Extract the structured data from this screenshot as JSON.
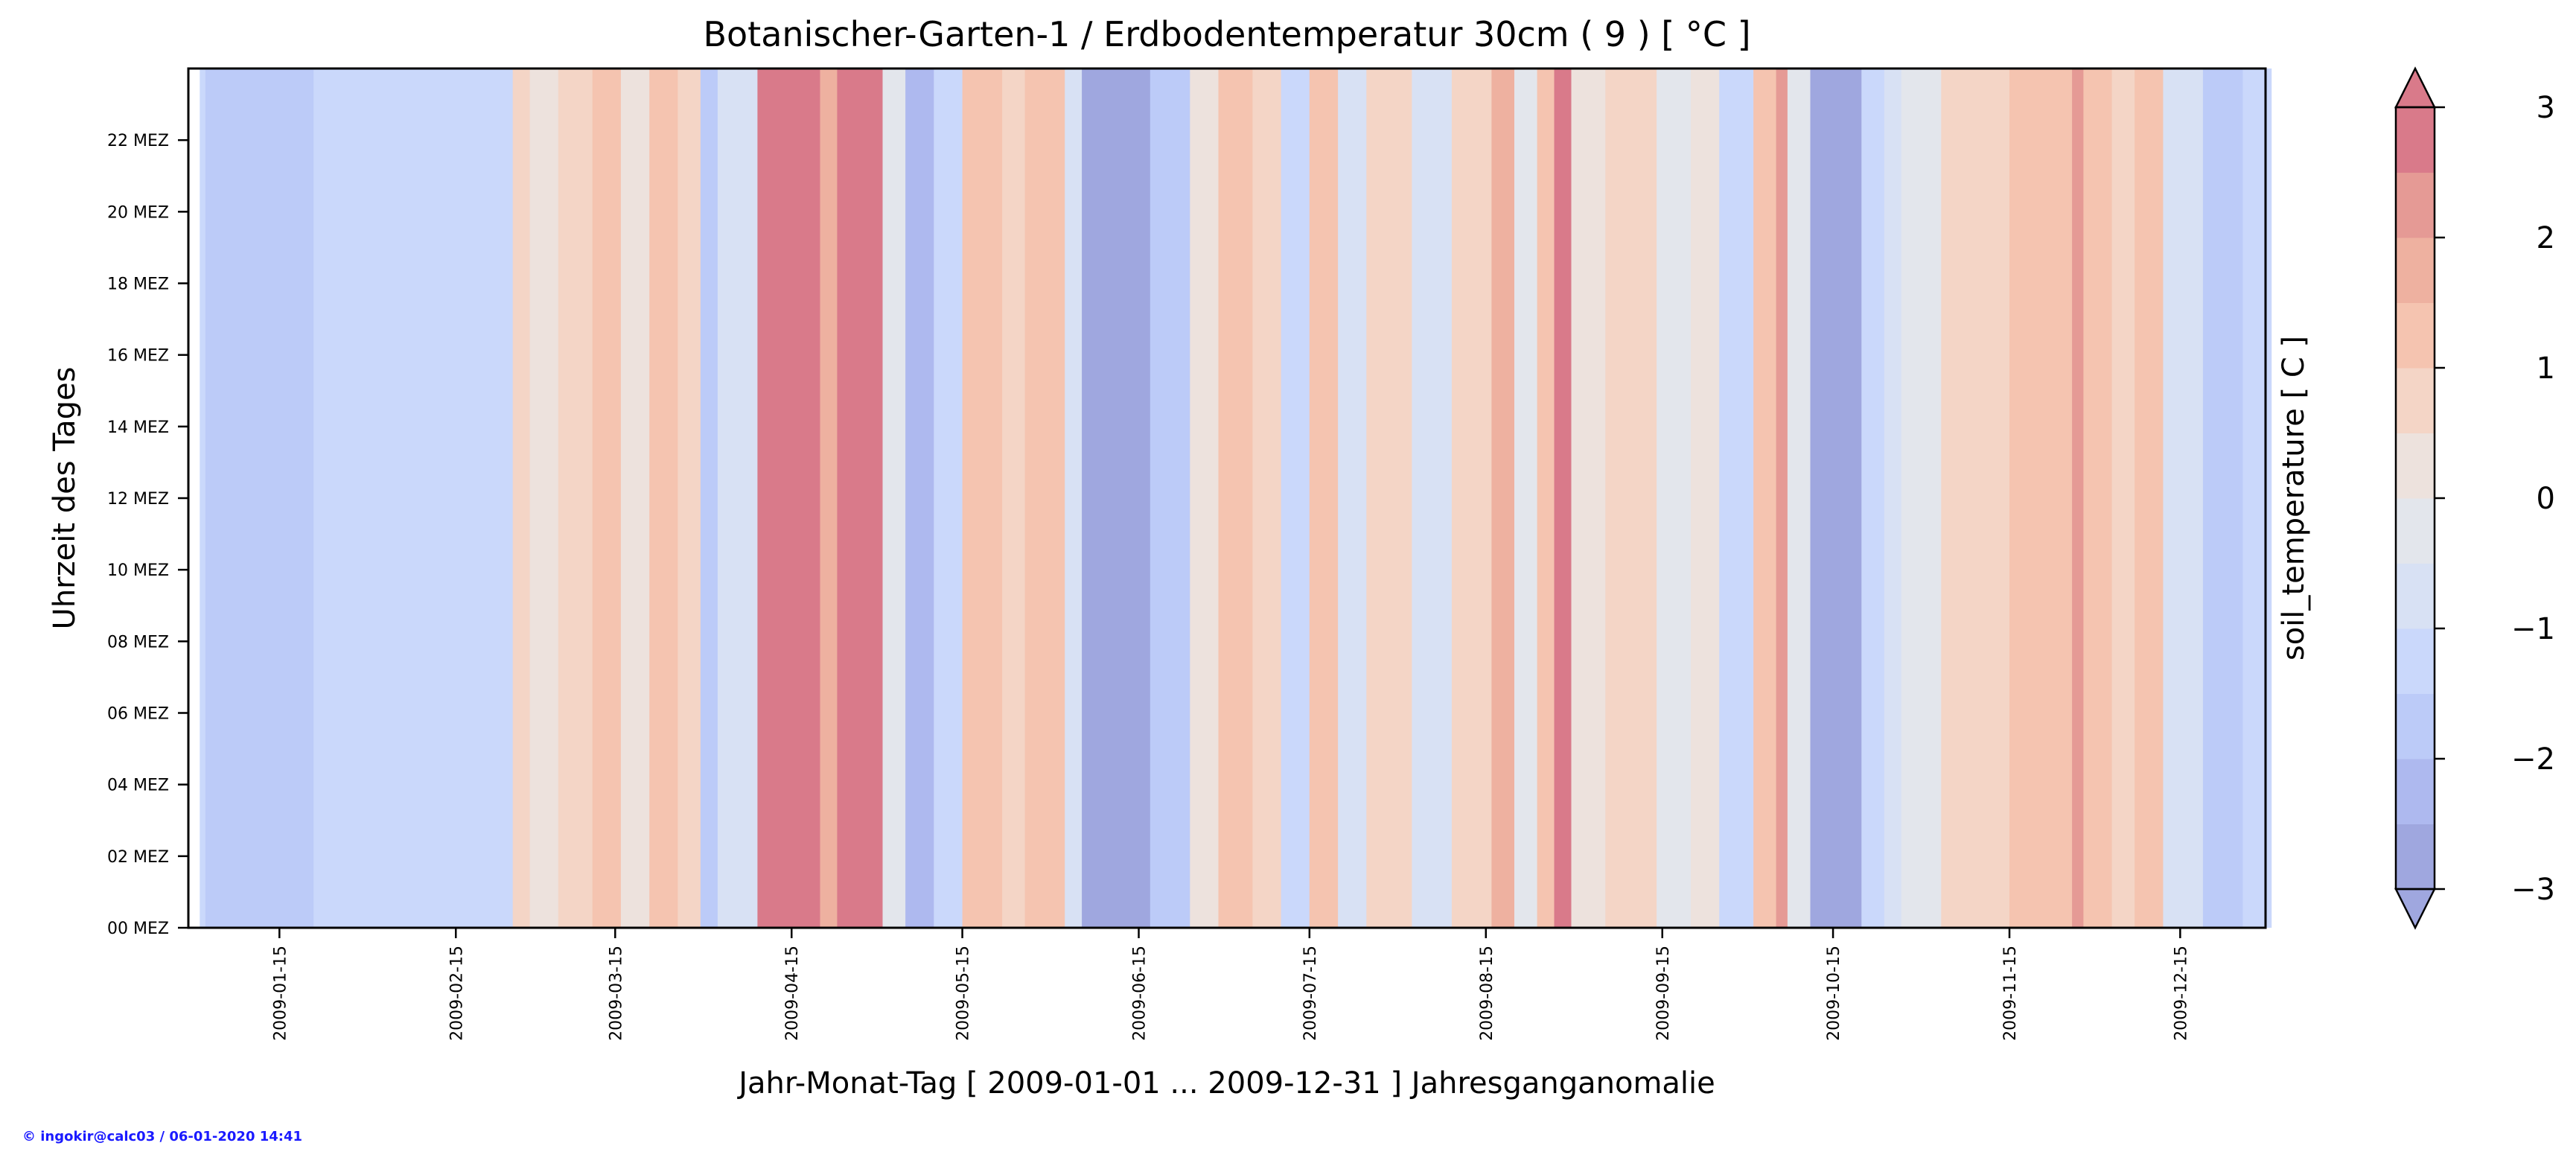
{
  "chart_data": {
    "type": "heatmap",
    "title": "Botanischer-Garten-1 / Erdbodentemperatur 30cm ( 9 ) [ °C ]",
    "xlabel": "Jahr-Monat-Tag [ 2009-01-01 ... 2009-12-31 ] Jahresganganomalie",
    "ylabel": "Uhrzeit des Tages",
    "colorbar_label": "soil_temperature [ C ]",
    "credit": "© ingokir@calc03 / 06-01-2020 14:41",
    "x_range": [
      "2009-01-01",
      "2009-12-31"
    ],
    "y_range": [
      0,
      24
    ],
    "x_ticks": [
      "2009-01-15",
      "2009-02-15",
      "2009-03-15",
      "2009-04-15",
      "2009-05-15",
      "2009-06-15",
      "2009-07-15",
      "2009-08-15",
      "2009-09-15",
      "2009-10-15",
      "2009-11-15",
      "2009-12-15"
    ],
    "y_ticks": [
      {
        "hour": 0,
        "label": "00 MEZ"
      },
      {
        "hour": 2,
        "label": "02 MEZ"
      },
      {
        "hour": 4,
        "label": "04 MEZ"
      },
      {
        "hour": 6,
        "label": "06 MEZ"
      },
      {
        "hour": 8,
        "label": "08 MEZ"
      },
      {
        "hour": 10,
        "label": "10 MEZ"
      },
      {
        "hour": 12,
        "label": "12 MEZ"
      },
      {
        "hour": 14,
        "label": "14 MEZ"
      },
      {
        "hour": 16,
        "label": "16 MEZ"
      },
      {
        "hour": 18,
        "label": "18 MEZ"
      },
      {
        "hour": 20,
        "label": "20 MEZ"
      },
      {
        "hour": 22,
        "label": "22 MEZ"
      }
    ],
    "colorbar": {
      "range": [
        -3,
        3
      ],
      "extend": "both",
      "ticks": [
        {
          "value": -3,
          "label": "−3"
        },
        {
          "value": -2,
          "label": "−2"
        },
        {
          "value": -1,
          "label": "−1"
        },
        {
          "value": 0,
          "label": "0"
        },
        {
          "value": 1,
          "label": "1"
        },
        {
          "value": 2,
          "label": "2"
        },
        {
          "value": 3,
          "label": "3"
        }
      ],
      "levels": [
        {
          "from": -3.0,
          "to": -2.5,
          "color": "#9fa7df"
        },
        {
          "from": -2.5,
          "to": -2.0,
          "color": "#aeb9ef"
        },
        {
          "from": -2.0,
          "to": -1.5,
          "color": "#bccbf8"
        },
        {
          "from": -1.5,
          "to": -1.0,
          "color": "#cad8fb"
        },
        {
          "from": -1.0,
          "to": -0.5,
          "color": "#d8e1f4"
        },
        {
          "from": -0.5,
          "to": 0.0,
          "color": "#e3e6ec"
        },
        {
          "from": 0.0,
          "to": 0.5,
          "color": "#ede2dd"
        },
        {
          "from": 0.5,
          "to": 1.0,
          "color": "#f4d5c6"
        },
        {
          "from": 1.0,
          "to": 1.5,
          "color": "#f5c4b0"
        },
        {
          "from": 1.5,
          "to": 2.0,
          "color": "#eeb1a0"
        },
        {
          "from": 2.0,
          "to": 2.5,
          "color": "#e59a95"
        },
        {
          "from": 2.5,
          "to": 3.0,
          "color": "#d97a8a"
        }
      ]
    },
    "anomaly_bands": [
      {
        "start": "2009-01-01",
        "end": "2009-01-02",
        "value": -1.4
      },
      {
        "start": "2009-01-02",
        "end": "2009-01-21",
        "value": -1.6
      },
      {
        "start": "2009-01-21",
        "end": "2009-02-25",
        "value": -1.3
      },
      {
        "start": "2009-02-25",
        "end": "2009-02-28",
        "value": 0.6
      },
      {
        "start": "2009-02-28",
        "end": "2009-03-05",
        "value": 0.4
      },
      {
        "start": "2009-03-05",
        "end": "2009-03-11",
        "value": 0.9
      },
      {
        "start": "2009-03-11",
        "end": "2009-03-16",
        "value": 1.4
      },
      {
        "start": "2009-03-16",
        "end": "2009-03-21",
        "value": 0.3
      },
      {
        "start": "2009-03-21",
        "end": "2009-03-26",
        "value": 1.0
      },
      {
        "start": "2009-03-26",
        "end": "2009-03-30",
        "value": 0.5
      },
      {
        "start": "2009-03-30",
        "end": "2009-04-02",
        "value": -1.8
      },
      {
        "start": "2009-04-02",
        "end": "2009-04-09",
        "value": -0.7
      },
      {
        "start": "2009-04-09",
        "end": "2009-04-20",
        "value": 2.7
      },
      {
        "start": "2009-04-20",
        "end": "2009-04-23",
        "value": 1.5
      },
      {
        "start": "2009-04-23",
        "end": "2009-05-01",
        "value": 2.8
      },
      {
        "start": "2009-05-01",
        "end": "2009-05-05",
        "value": -0.3
      },
      {
        "start": "2009-05-05",
        "end": "2009-05-10",
        "value": -2.2
      },
      {
        "start": "2009-05-10",
        "end": "2009-05-15",
        "value": -1.3
      },
      {
        "start": "2009-05-15",
        "end": "2009-05-22",
        "value": 1.3
      },
      {
        "start": "2009-05-22",
        "end": "2009-05-26",
        "value": 0.6
      },
      {
        "start": "2009-05-26",
        "end": "2009-06-02",
        "value": 1.1
      },
      {
        "start": "2009-06-02",
        "end": "2009-06-05",
        "value": -1.0
      },
      {
        "start": "2009-06-05",
        "end": "2009-06-17",
        "value": -2.7
      },
      {
        "start": "2009-06-17",
        "end": "2009-06-24",
        "value": -1.6
      },
      {
        "start": "2009-06-24",
        "end": "2009-06-29",
        "value": 0.4
      },
      {
        "start": "2009-06-29",
        "end": "2009-07-05",
        "value": 1.0
      },
      {
        "start": "2009-07-05",
        "end": "2009-07-10",
        "value": 0.5
      },
      {
        "start": "2009-07-10",
        "end": "2009-07-15",
        "value": -1.2
      },
      {
        "start": "2009-07-15",
        "end": "2009-07-20",
        "value": 1.2
      },
      {
        "start": "2009-07-20",
        "end": "2009-07-25",
        "value": -0.6
      },
      {
        "start": "2009-07-25",
        "end": "2009-08-02",
        "value": 0.8
      },
      {
        "start": "2009-08-02",
        "end": "2009-08-09",
        "value": -0.8
      },
      {
        "start": "2009-08-09",
        "end": "2009-08-16",
        "value": 0.9
      },
      {
        "start": "2009-08-16",
        "end": "2009-08-20",
        "value": 1.6
      },
      {
        "start": "2009-08-20",
        "end": "2009-08-24",
        "value": -0.5
      },
      {
        "start": "2009-08-24",
        "end": "2009-08-27",
        "value": 1.2
      },
      {
        "start": "2009-08-27",
        "end": "2009-08-30",
        "value": 2.6
      },
      {
        "start": "2009-08-30",
        "end": "2009-09-05",
        "value": 0.2
      },
      {
        "start": "2009-09-05",
        "end": "2009-09-14",
        "value": 0.7
      },
      {
        "start": "2009-09-14",
        "end": "2009-09-20",
        "value": -0.2
      },
      {
        "start": "2009-09-20",
        "end": "2009-09-25",
        "value": 0.2
      },
      {
        "start": "2009-09-25",
        "end": "2009-10-01",
        "value": -1.2
      },
      {
        "start": "2009-10-01",
        "end": "2009-10-05",
        "value": 1.4
      },
      {
        "start": "2009-10-05",
        "end": "2009-10-07",
        "value": 2.3
      },
      {
        "start": "2009-10-07",
        "end": "2009-10-11",
        "value": -0.4
      },
      {
        "start": "2009-10-11",
        "end": "2009-10-20",
        "value": -2.7
      },
      {
        "start": "2009-10-20",
        "end": "2009-10-24",
        "value": -1.5
      },
      {
        "start": "2009-10-24",
        "end": "2009-10-27",
        "value": -0.7
      },
      {
        "start": "2009-10-27",
        "end": "2009-11-03",
        "value": -0.2
      },
      {
        "start": "2009-11-03",
        "end": "2009-11-15",
        "value": 0.9
      },
      {
        "start": "2009-11-15",
        "end": "2009-11-26",
        "value": 1.2
      },
      {
        "start": "2009-11-26",
        "end": "2009-11-28",
        "value": 2.4
      },
      {
        "start": "2009-11-28",
        "end": "2009-12-03",
        "value": 1.3
      },
      {
        "start": "2009-12-03",
        "end": "2009-12-07",
        "value": 0.6
      },
      {
        "start": "2009-12-07",
        "end": "2009-12-12",
        "value": 1.1
      },
      {
        "start": "2009-12-12",
        "end": "2009-12-19",
        "value": -1.0
      },
      {
        "start": "2009-12-19",
        "end": "2009-12-26",
        "value": -1.7
      },
      {
        "start": "2009-12-26",
        "end": "2009-12-31",
        "value": -1.4
      }
    ],
    "grid": false
  }
}
